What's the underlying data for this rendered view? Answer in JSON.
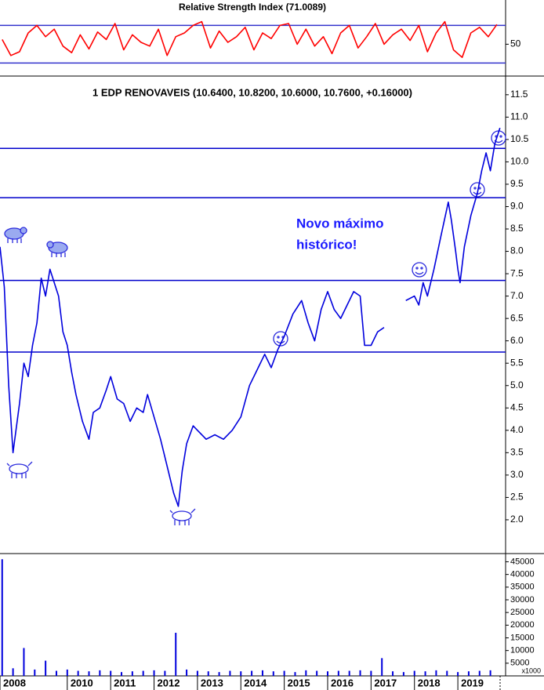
{
  "chart_data": [
    {
      "type": "line",
      "title": "Relative Strength Index (71.0089)",
      "color": "#ff0000",
      "level_color": "#3333cc",
      "xlim": [
        2008.45,
        2020.1
      ],
      "ylim": [
        17,
        97
      ],
      "yticks": [
        50
      ],
      "levels": [
        70,
        30
      ],
      "x": [
        2008.5,
        2008.7,
        2008.9,
        2009.1,
        2009.3,
        2009.5,
        2009.7,
        2009.9,
        2010.1,
        2010.3,
        2010.5,
        2010.7,
        2010.9,
        2011.1,
        2011.3,
        2011.5,
        2011.7,
        2011.9,
        2012.1,
        2012.3,
        2012.5,
        2012.7,
        2012.9,
        2013.1,
        2013.3,
        2013.5,
        2013.7,
        2013.9,
        2014.1,
        2014.3,
        2014.5,
        2014.7,
        2014.9,
        2015.1,
        2015.3,
        2015.5,
        2015.7,
        2015.9,
        2016.1,
        2016.3,
        2016.5,
        2016.7,
        2016.9,
        2017.1,
        2017.3,
        2017.5,
        2017.7,
        2017.9,
        2018.1,
        2018.3,
        2018.5,
        2018.7,
        2018.9,
        2019.1,
        2019.3,
        2019.5,
        2019.7,
        2019.9
      ],
      "values": [
        55,
        38,
        42,
        62,
        70,
        58,
        66,
        48,
        41,
        60,
        45,
        63,
        55,
        72,
        44,
        60,
        52,
        48,
        66,
        38,
        58,
        62,
        70,
        74,
        46,
        64,
        52,
        58,
        68,
        44,
        62,
        56,
        70,
        72,
        50,
        66,
        48,
        58,
        40,
        62,
        70,
        46,
        58,
        72,
        50,
        60,
        66,
        54,
        70,
        42,
        62,
        74,
        44,
        36,
        62,
        68,
        58,
        71
      ]
    },
    {
      "type": "line",
      "title": "1 EDP RENOVAVEIS (10.6400, 10.8200, 10.6000, 10.7600, +0.16000)",
      "color": "#0000dd",
      "level_color": "#0000cc",
      "annotation": [
        "Novo máximo",
        "histórico!"
      ],
      "xlim": [
        2008.45,
        2020.1
      ],
      "ylim": [
        1.0,
        11.9
      ],
      "yticks": [
        {
          "value": 2,
          "label": "2.0"
        },
        2.5,
        {
          "value": 3,
          "label": "3.0"
        },
        3.5,
        {
          "value": 4,
          "label": "4.0"
        },
        4.5,
        {
          "value": 5,
          "label": "5.0"
        },
        5.5,
        {
          "value": 6,
          "label": "6.0"
        },
        6.5,
        {
          "value": 7,
          "label": "7.0"
        },
        7.5,
        {
          "value": 8,
          "label": "8.0"
        },
        8.5,
        {
          "value": 9,
          "label": "9.0"
        },
        9.5,
        {
          "value": 10,
          "label": "10.0"
        },
        10.5,
        {
          "value": 11,
          "label": "11.0"
        },
        11.5
      ],
      "levels": [
        10.3,
        9.2,
        7.35,
        5.75
      ],
      "x": [
        2008.45,
        2008.55,
        2008.65,
        2008.75,
        2008.9,
        2009.0,
        2009.1,
        2009.2,
        2009.3,
        2009.4,
        2009.5,
        2009.6,
        2009.7,
        2009.8,
        2009.9,
        2010.0,
        2010.1,
        2010.2,
        2010.35,
        2010.5,
        2010.6,
        2010.75,
        2010.9,
        2011.0,
        2011.15,
        2011.3,
        2011.45,
        2011.6,
        2011.75,
        2011.85,
        2012.0,
        2012.15,
        2012.3,
        2012.45,
        2012.56,
        2012.65,
        2012.75,
        2012.9,
        2013.0,
        2013.2,
        2013.4,
        2013.6,
        2013.8,
        2014.0,
        2014.2,
        2014.4,
        2014.55,
        2014.7,
        2014.85,
        2015.0,
        2015.2,
        2015.4,
        2015.55,
        2015.7,
        2015.85,
        2016.0,
        2016.15,
        2016.3,
        2016.45,
        2016.6,
        2016.75,
        2016.85,
        2017.0,
        2017.15,
        2017.3,
        2017.5,
        2017.8,
        2018.0,
        2018.1,
        2018.2,
        2018.3,
        2018.45,
        2018.6,
        2018.78,
        2018.85,
        2018.95,
        2019.0,
        2019.05,
        2019.15,
        2019.3,
        2019.45,
        2019.55,
        2019.65,
        2019.75,
        2019.85,
        2019.97
      ],
      "values": [
        8.1,
        7.2,
        5.0,
        3.5,
        4.6,
        5.5,
        5.2,
        5.9,
        6.4,
        7.4,
        7.0,
        7.6,
        7.3,
        7.0,
        6.2,
        5.9,
        5.3,
        4.8,
        4.2,
        3.8,
        4.4,
        4.5,
        4.9,
        5.2,
        4.7,
        4.6,
        4.2,
        4.5,
        4.4,
        4.8,
        4.3,
        3.8,
        3.2,
        2.6,
        2.3,
        3.1,
        3.7,
        4.1,
        4.0,
        3.8,
        3.9,
        3.8,
        4.0,
        4.3,
        5.0,
        5.4,
        5.7,
        5.4,
        5.8,
        6.1,
        6.6,
        6.9,
        6.4,
        6.0,
        6.7,
        7.1,
        6.7,
        6.5,
        6.8,
        7.1,
        7.0,
        5.9,
        5.9,
        6.2,
        6.3,
        null,
        6.9,
        7.0,
        6.8,
        7.3,
        7.0,
        7.6,
        8.3,
        9.1,
        8.7,
        8.0,
        7.6,
        7.3,
        8.1,
        8.8,
        9.3,
        9.8,
        10.2,
        9.8,
        10.4,
        10.76
      ]
    },
    {
      "type": "bar",
      "color": "#0000dd",
      "unit_label": "x1000",
      "xlim": [
        2008.45,
        2020.1
      ],
      "ylim": [
        0,
        47000
      ],
      "yticks": [
        5000,
        10000,
        15000,
        20000,
        25000,
        30000,
        35000,
        40000,
        45000
      ],
      "xticks": [
        {
          "value": 2008.45,
          "label": "2008"
        },
        2010,
        2011,
        2012,
        2013,
        2014,
        2015,
        2016,
        2017,
        2018,
        2019
      ],
      "x": [
        2008.5,
        2008.75,
        2009,
        2009.25,
        2009.5,
        2009.75,
        2010,
        2010.25,
        2010.5,
        2010.75,
        2011,
        2011.25,
        2011.5,
        2011.75,
        2012,
        2012.25,
        2012.5,
        2012.75,
        2013,
        2013.25,
        2013.5,
        2013.75,
        2014,
        2014.25,
        2014.5,
        2014.75,
        2015,
        2015.25,
        2015.5,
        2015.75,
        2016,
        2016.25,
        2016.5,
        2016.75,
        2017,
        2017.25,
        2017.5,
        2017.75,
        2018,
        2018.25,
        2018.5,
        2018.75,
        2019,
        2019.25,
        2019.5,
        2019.75
      ],
      "values": [
        46000,
        3000,
        11000,
        2500,
        6000,
        2000,
        2500,
        2000,
        1800,
        2200,
        2000,
        1500,
        1800,
        2000,
        2200,
        2000,
        17000,
        2500,
        2000,
        1800,
        1500,
        2000,
        1800,
        2000,
        2200,
        1800,
        2000,
        1500,
        2200,
        2000,
        1800,
        2000,
        2000,
        2200,
        2000,
        7000,
        1800,
        1500,
        2000,
        1800,
        2200,
        2000,
        1500,
        1800,
        2000,
        2200
      ]
    }
  ]
}
